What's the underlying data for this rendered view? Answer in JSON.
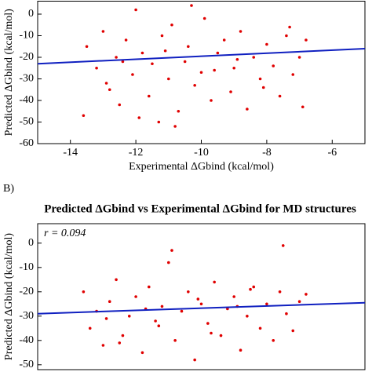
{
  "charts": [
    {
      "chart_data": {
        "type": "scatter",
        "panel_label": null,
        "x_label": "Experimental ΔGbind (kcal/mol)",
        "y_label": "Predicted ΔGbind (kcal/mol)",
        "xlim": [
          -15,
          -5
        ],
        "xticks": [
          -14,
          -12,
          -10,
          -8,
          -6
        ],
        "ylim": [
          -60,
          6
        ],
        "yticks": [
          -60,
          -50,
          -40,
          -30,
          -20,
          -10,
          0
        ],
        "color": "#e00000",
        "fit_color": "#1020c0",
        "fit_x": [
          -15,
          -5
        ],
        "fit_y": [
          -23,
          -16
        ],
        "x": [
          -13.6,
          -13.5,
          -13.2,
          -13.0,
          -12.8,
          -12.6,
          -12.5,
          -12.3,
          -12.1,
          -12.0,
          -11.8,
          -11.6,
          -11.5,
          -11.3,
          -11.2,
          -11.0,
          -10.9,
          -10.7,
          -10.5,
          -10.4,
          -10.2,
          -10.0,
          -9.9,
          -9.7,
          -9.5,
          -9.3,
          -9.1,
          -9.0,
          -8.8,
          -8.6,
          -8.4,
          -8.2,
          -8.0,
          -7.8,
          -7.6,
          -7.4,
          -7.2,
          -7.0,
          -6.9,
          -6.8,
          -12.9,
          -11.9,
          -11.1,
          -10.3,
          -9.6,
          -8.9,
          -8.1,
          -7.3,
          -12.4,
          -10.8
        ],
        "y": [
          -47,
          -15,
          -25,
          -8,
          -35,
          -20,
          -42,
          -12,
          -28,
          2,
          -18,
          -38,
          -23,
          -50,
          -10,
          -30,
          -5,
          -45,
          -22,
          -15,
          -33,
          -27,
          -2,
          -40,
          -18,
          -12,
          -36,
          -25,
          -8,
          -44,
          -20,
          -30,
          -14,
          -24,
          -38,
          -10,
          -28,
          -20,
          -43,
          -12,
          -32,
          -48,
          -17,
          4,
          -26,
          -21,
          -34,
          -6,
          -22,
          -52
        ]
      }
    },
    {
      "chart_data": {
        "type": "scatter",
        "panel_label": "B)",
        "title": "Predicted ΔGbind vs Experimental ΔGbind for MD structures",
        "annotation": "r = 0.094",
        "y_label": "Predicted ΔGbind (kcal/mol)",
        "xlim": [
          -15,
          -5
        ],
        "ylim": [
          -52,
          8
        ],
        "yticks": [
          -50,
          -40,
          -30,
          -20,
          -10,
          0
        ],
        "color": "#e00000",
        "fit_color": "#1020c0",
        "fit_x": [
          -15,
          -5
        ],
        "fit_y": [
          -29,
          -24.5
        ],
        "x": [
          -13.6,
          -13.4,
          -13.2,
          -13.0,
          -12.8,
          -12.6,
          -12.4,
          -12.2,
          -12.0,
          -11.8,
          -11.6,
          -11.4,
          -11.2,
          -11.0,
          -10.8,
          -10.6,
          -10.4,
          -10.2,
          -10.0,
          -9.8,
          -9.6,
          -9.4,
          -9.2,
          -9.0,
          -8.8,
          -8.6,
          -8.4,
          -8.2,
          -8.0,
          -7.8,
          -7.6,
          -7.4,
          -7.2,
          -7.0,
          -6.8,
          -12.9,
          -11.7,
          -10.9,
          -9.7,
          -8.5,
          -7.5,
          -11.3,
          -10.1,
          -12.5,
          -8.9
        ],
        "y": [
          -20,
          -35,
          -28,
          -42,
          -24,
          -15,
          -38,
          -30,
          -22,
          -45,
          -18,
          -32,
          -26,
          -8,
          -40,
          -28,
          -20,
          -48,
          -25,
          -33,
          -16,
          -38,
          -27,
          -22,
          -44,
          -30,
          -18,
          -35,
          -25,
          -40,
          -20,
          -29,
          -36,
          -24,
          -21,
          -31,
          -27,
          -3,
          -37,
          -19,
          -1,
          -34,
          -23,
          -41,
          -26
        ]
      }
    }
  ]
}
